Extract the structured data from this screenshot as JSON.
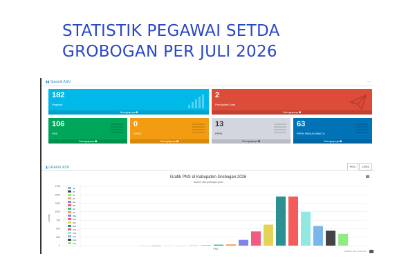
{
  "page": {
    "title": "STATISTIK PEGAWAI SETDA GROBOGAN PER JULI 2026"
  },
  "stats": {
    "header": "Statistik ASN",
    "tiles": [
      {
        "key": "pegawai",
        "value": "182",
        "label": "Pegawai",
        "more": "Selengkapnya",
        "color": "#00b9e8"
      },
      {
        "key": "perubahan",
        "value": "2",
        "label": "Perubahan Data",
        "more": "Selengkapnya",
        "color": "#dd4b39"
      },
      {
        "key": "pns",
        "value": "106",
        "label": "PNS",
        "more": "Selengkapnya",
        "color": "#00a65a"
      },
      {
        "key": "cpns",
        "value": "0",
        "label": "CPNS",
        "more": "Selengkapnya",
        "color": "#f39c12"
      },
      {
        "key": "pppk",
        "value": "13",
        "label": "PPPK",
        "more": "Selengkapnya",
        "color": "#d2d6de"
      },
      {
        "key": "pppk-paruh",
        "value": "63",
        "label": "PPPK PARUH WAKTU",
        "more": "Selengkapnya",
        "color": "#0073b7"
      }
    ]
  },
  "grafik": {
    "header": "GRAFIK ASN",
    "tabs": [
      "PNS",
      "CPNS"
    ],
    "credit": "SIMPEG Kab. Grobogan"
  },
  "chart_data": {
    "type": "bar",
    "title": "Grafik PNS di Kabupaten Grobogan 2026",
    "subtitle": "Source: bkd.grobogan.go.id",
    "ylabel": "Jumlah",
    "category": "PNS",
    "ylim": [
      0,
      1750
    ],
    "yticks": [
      0,
      250,
      500,
      750,
      1000,
      1250,
      1500,
      1750
    ],
    "series": [
      {
        "name": "I/a",
        "value": 0,
        "color": "#7cb5ec"
      },
      {
        "name": "I/b",
        "value": 0,
        "color": "#434348"
      },
      {
        "name": "I/c",
        "value": 0,
        "color": "#90ed7d"
      },
      {
        "name": "I/d",
        "value": 0,
        "color": "#f7a35c"
      },
      {
        "name": "II/a",
        "value": 2,
        "color": "#8085e9"
      },
      {
        "name": "II/b",
        "value": 10,
        "color": "#f15c80"
      },
      {
        "name": "II/c",
        "value": 30,
        "color": "#2ec77a"
      },
      {
        "name": "II/d",
        "value": 40,
        "color": "#f7a35c"
      },
      {
        "name": "III/a",
        "value": 170,
        "color": "#8085e9"
      },
      {
        "name": "III/b",
        "value": 420,
        "color": "#f15c80"
      },
      {
        "name": "III/c",
        "value": 620,
        "color": "#e4d354"
      },
      {
        "name": "III/d",
        "value": 1450,
        "color": "#2b908f"
      },
      {
        "name": "IV/a",
        "value": 1450,
        "color": "#f45b5b"
      },
      {
        "name": "IV/b",
        "value": 1000,
        "color": "#91e8e1"
      },
      {
        "name": "IV/c",
        "value": 580,
        "color": "#7cb5ec"
      },
      {
        "name": "IV/d",
        "value": 440,
        "color": "#434348"
      },
      {
        "name": "IV/e",
        "value": 350,
        "color": "#90ed7d"
      }
    ]
  }
}
